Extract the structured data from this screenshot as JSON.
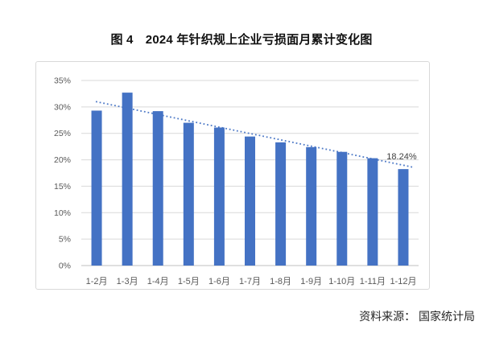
{
  "page": {
    "title": "图 4　2024 年针织规上企业亏损面月累计变化图",
    "source_note": "资料来源： 国家统计局"
  },
  "colors": {
    "bar": "#4472C4",
    "trendline": "#4472C4",
    "gridline": "#D9D9D9",
    "axis_line": "#BFBFBF",
    "tick_text": "#595959",
    "annotation_text": "#404040",
    "panel_border": "#D9D9D9"
  },
  "chart_data": {
    "type": "bar",
    "title": "图 4　2024 年针织规上企业亏损面月累计变化图",
    "categories": [
      "1-2月",
      "1-3月",
      "1-4月",
      "1-5月",
      "1-6月",
      "1-7月",
      "1-8月",
      "1-9月",
      "1-10月",
      "1-11月",
      "1-12月"
    ],
    "values": [
      29.3,
      32.7,
      29.2,
      27.0,
      26.1,
      24.4,
      23.3,
      22.4,
      21.5,
      20.3,
      18.24
    ],
    "unit": "percent",
    "ylim": [
      0,
      35
    ],
    "ytick_step": 5,
    "ytick_labels": [
      "0%",
      "5%",
      "10%",
      "15%",
      "20%",
      "25%",
      "30%",
      "35%"
    ],
    "grid": true,
    "legend": "none",
    "trendline": {
      "style": "dotted",
      "start_value": 31.0,
      "end_value": 18.6
    },
    "annotations": [
      {
        "text": "18.24%",
        "category": "1-12月",
        "value": 18.24
      }
    ]
  }
}
